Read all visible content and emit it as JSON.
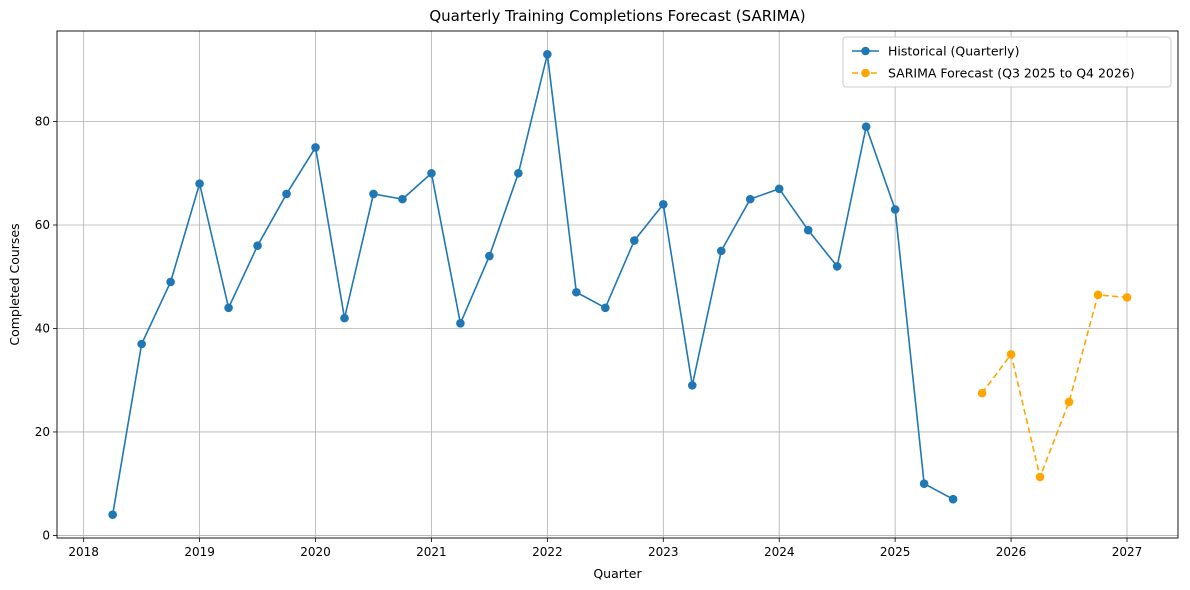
{
  "chart_data": {
    "type": "line",
    "title": "Quarterly Training Completions Forecast (SARIMA)",
    "xlabel": "Quarter",
    "ylabel": "Completed Courses",
    "xlim": [
      2017.77,
      2027.44
    ],
    "ylim": [
      -0.5,
      97.5
    ],
    "x_ticks": [
      2018,
      2019,
      2020,
      2021,
      2022,
      2023,
      2024,
      2025,
      2026,
      2027
    ],
    "y_ticks": [
      0,
      20,
      40,
      60,
      80
    ],
    "grid": true,
    "legend_position": "top-right",
    "series": [
      {
        "name": "Historical (Quarterly)",
        "color": "#1f77b4",
        "style": "solid",
        "marker": "circle",
        "x": [
          2018.25,
          2018.5,
          2018.75,
          2019.0,
          2019.25,
          2019.5,
          2019.75,
          2020.0,
          2020.25,
          2020.5,
          2020.75,
          2021.0,
          2021.25,
          2021.5,
          2021.75,
          2022.0,
          2022.25,
          2022.5,
          2022.75,
          2023.0,
          2023.25,
          2023.5,
          2023.75,
          2024.0,
          2024.25,
          2024.5,
          2024.75,
          2025.0,
          2025.25,
          2025.5
        ],
        "values": [
          4,
          37,
          49,
          68,
          44,
          56,
          66,
          75,
          42,
          66,
          65,
          70,
          41,
          54,
          70,
          93,
          47,
          44,
          57,
          64,
          29,
          55,
          65,
          67,
          59,
          52,
          79,
          63,
          10,
          7
        ]
      },
      {
        "name": "SARIMA Forecast (Q3 2025 to Q4 2026)",
        "color": "#ffa500",
        "style": "dashed",
        "marker": "circle",
        "x": [
          2025.75,
          2026.0,
          2026.25,
          2026.5,
          2026.75,
          2027.0
        ],
        "values": [
          27.5,
          35,
          11.3,
          25.8,
          46.5,
          46
        ]
      }
    ]
  }
}
